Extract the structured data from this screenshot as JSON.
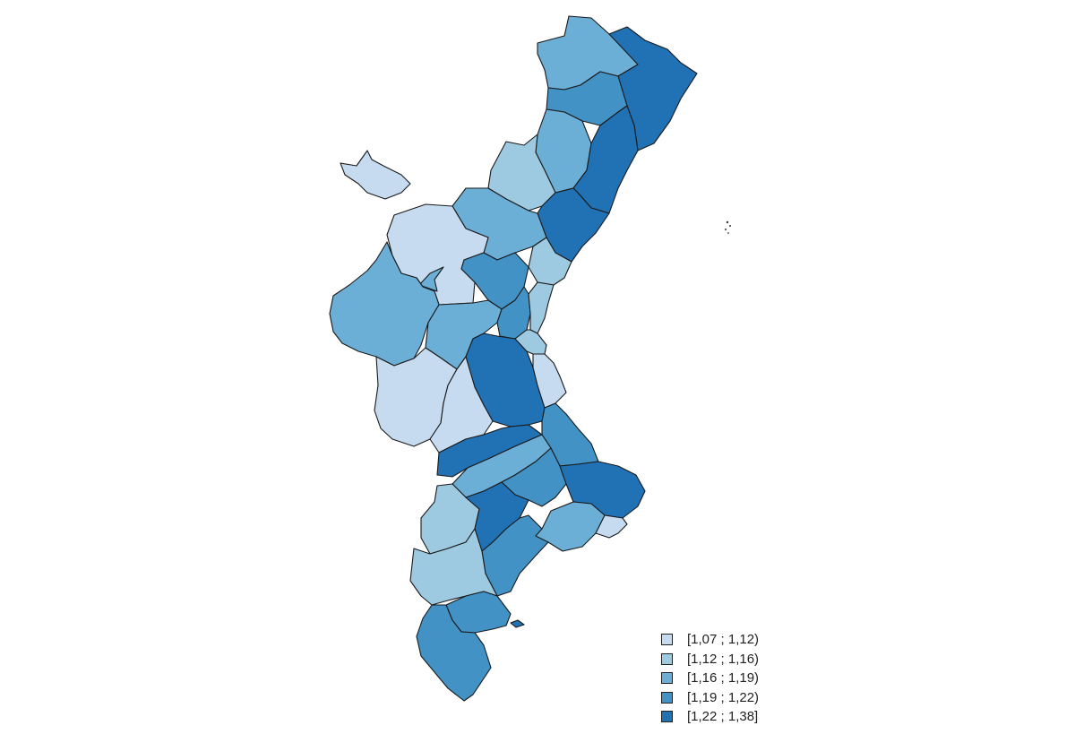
{
  "legend": {
    "classes": [
      {
        "label": "[1,07 ; 1,12)",
        "color": "#c6dbef"
      },
      {
        "label": "[1,12 ; 1,16)",
        "color": "#9ecae1"
      },
      {
        "label": "[1,16 ; 1,19)",
        "color": "#6baed6"
      },
      {
        "label": "[1,19 ; 1,22)",
        "color": "#4292c6"
      },
      {
        "label": "[1,22 ; 1,38]",
        "color": "#2171b5"
      }
    ]
  },
  "regions": [
    {
      "class": 2
    },
    {
      "class": 4
    },
    {
      "class": 3
    },
    {
      "class": 2
    },
    {
      "class": 4
    },
    {
      "class": 1
    },
    {
      "class": 4
    },
    {
      "class": 2
    },
    {
      "class": 1
    },
    {
      "class": 0
    },
    {
      "class": 0
    },
    {
      "class": 2
    },
    {
      "class": 3
    },
    {
      "class": 2
    },
    {
      "class": 2
    },
    {
      "class": 3
    },
    {
      "class": 1
    },
    {
      "class": 0
    },
    {
      "class": 4
    },
    {
      "class": 1
    },
    {
      "class": 0
    },
    {
      "class": 0
    },
    {
      "class": 3
    },
    {
      "class": 4
    },
    {
      "class": 2
    },
    {
      "class": 3
    },
    {
      "class": 4
    },
    {
      "class": 1
    },
    {
      "class": 4
    },
    {
      "class": 3
    },
    {
      "class": 2
    },
    {
      "class": 0
    },
    {
      "class": 1
    },
    {
      "class": 3
    },
    {
      "class": 3
    },
    {
      "class": 4
    },
    {
      "class": 2
    }
  ]
}
